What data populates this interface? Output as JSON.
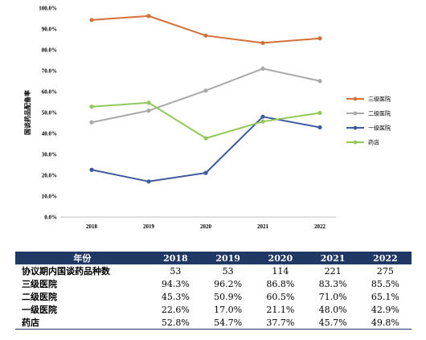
{
  "chart_data": {
    "type": "line",
    "categories": [
      "2018",
      "2019",
      "2020",
      "2021",
      "2022"
    ],
    "ylabel": "国谈药品配备率",
    "ylim": [
      0,
      100
    ],
    "yticks": [
      "0.0%",
      "10.0%",
      "20.0%",
      "30.0%",
      "40.0%",
      "50.0%",
      "60.0%",
      "70.0%",
      "80.0%",
      "90.0%",
      "100.0%"
    ],
    "grid": false,
    "legend_position": "right",
    "series": [
      {
        "name": "三级医院",
        "values": [
          94.3,
          96.2,
          86.8,
          83.3,
          85.5
        ],
        "color": "#d4703a"
      },
      {
        "name": "二级医院",
        "values": [
          45.3,
          50.9,
          60.5,
          71.0,
          65.1
        ],
        "color": "#a9a9a9"
      },
      {
        "name": "一级医院",
        "values": [
          22.6,
          17.0,
          21.1,
          48.0,
          42.9
        ],
        "color": "#3d5a9e"
      },
      {
        "name": "药店",
        "values": [
          52.8,
          54.7,
          37.7,
          45.7,
          49.8
        ],
        "color": "#92c85a"
      }
    ]
  },
  "table": {
    "header": [
      "年份",
      "2018",
      "2019",
      "2020",
      "2021",
      "2022"
    ],
    "rows": [
      {
        "label": "协议期内国谈药品种数",
        "values": [
          "53",
          "53",
          "114",
          "221",
          "275"
        ]
      },
      {
        "label": "三级医院",
        "values": [
          "94.3%",
          "96.2%",
          "86.8%",
          "83.3%",
          "85.5%"
        ]
      },
      {
        "label": "二级医院",
        "values": [
          "45.3%",
          "50.9%",
          "60.5%",
          "71.0%",
          "65.1%"
        ]
      },
      {
        "label": "一级医院",
        "values": [
          "22.6%",
          "17.0%",
          "21.1%",
          "48.0%",
          "42.9%"
        ]
      },
      {
        "label": "药店",
        "values": [
          "52.8%",
          "54.7%",
          "37.7%",
          "45.7%",
          "49.8%"
        ]
      }
    ]
  }
}
